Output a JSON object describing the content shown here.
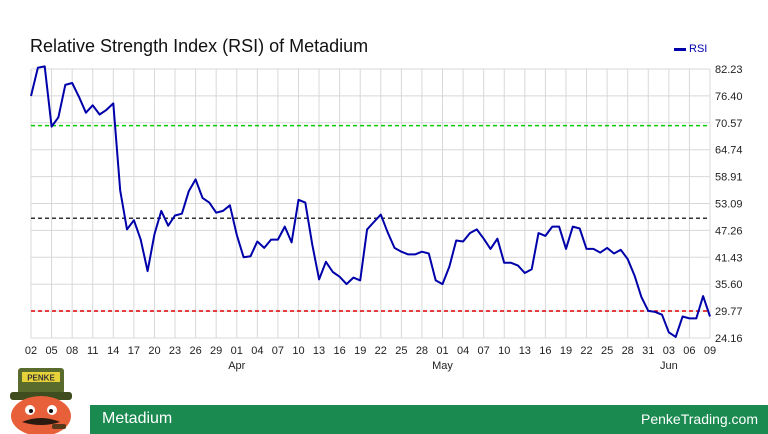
{
  "chart_data": {
    "type": "line",
    "title": "Relative Strength Index (RSI) of Metadium",
    "legend": {
      "position": "top-right",
      "entries": [
        "RSI"
      ]
    },
    "y_ticks": [
      "82.23",
      "76.40",
      "70.57",
      "64.74",
      "58.91",
      "53.09",
      "47.26",
      "41.43",
      "35.60",
      "29.77",
      "24.16"
    ],
    "ylim": [
      24.16,
      82.23
    ],
    "x_ticks": [
      "02",
      "05",
      "08",
      "11",
      "14",
      "17",
      "20",
      "23",
      "26",
      "29",
      "01",
      "04",
      "07",
      "10",
      "13",
      "16",
      "19",
      "22",
      "25",
      "28",
      "01",
      "04",
      "07",
      "10",
      "13",
      "16",
      "19",
      "22",
      "25",
      "28",
      "31",
      "03",
      "06",
      "09"
    ],
    "month_labels": [
      {
        "label": "Apr",
        "tick_index": 10
      },
      {
        "label": "May",
        "tick_index": 20
      },
      {
        "label": "Jun",
        "tick_index": 31
      }
    ],
    "reference_lines": [
      {
        "value": 70.0,
        "color": "#00cc00"
      },
      {
        "value": 50.0,
        "color": "#333333"
      },
      {
        "value": 30.0,
        "color": "#dd0000"
      }
    ],
    "series": [
      {
        "name": "RSI",
        "color": "#0000aa",
        "values": [
          76.4,
          82.5,
          82.8,
          69.8,
          71.8,
          78.8,
          79.2,
          76.2,
          72.8,
          74.4,
          72.4,
          73.4,
          74.8,
          56.0,
          47.6,
          49.6,
          45.4,
          38.6,
          46.6,
          51.6,
          48.4,
          50.6,
          51.0,
          55.8,
          58.4,
          54.4,
          53.4,
          51.2,
          51.6,
          52.8,
          46.4,
          41.6,
          41.8,
          45.0,
          43.6,
          45.4,
          45.4,
          48.2,
          44.8,
          54.0,
          53.4,
          44.4,
          36.8,
          40.6,
          38.4,
          37.4,
          35.8,
          37.2,
          36.6,
          47.6,
          49.2,
          50.8,
          47.0,
          43.6,
          42.8,
          42.2,
          42.2,
          42.8,
          42.4,
          36.6,
          35.8,
          39.6,
          45.2,
          45.0,
          46.8,
          47.6,
          45.6,
          43.4,
          45.6,
          40.4,
          40.4,
          39.8,
          38.2,
          39.0,
          46.8,
          46.2,
          48.2,
          48.2,
          43.4,
          48.2,
          47.8,
          43.4,
          43.4,
          42.6,
          43.6,
          42.4,
          43.2,
          41.2,
          37.6,
          33.0,
          30.0,
          29.8,
          29.2,
          25.4,
          24.4,
          28.8,
          28.4,
          28.4,
          33.2,
          28.8
        ]
      }
    ]
  },
  "footer": {
    "name": "Metadium",
    "site": "PenkeTrading.com"
  },
  "mascot": {
    "badge": "PENKE"
  }
}
